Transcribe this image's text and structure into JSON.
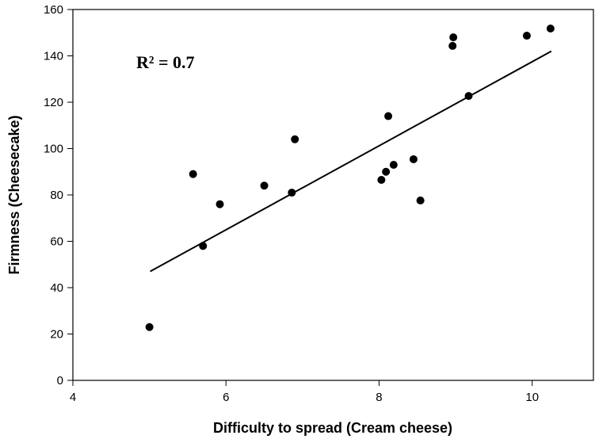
{
  "chart_data": {
    "type": "scatter",
    "x_label": "Difficulty to spread (Cream cheese)",
    "y_label": "Firmness (Cheesecake)",
    "annotation": "R² = 0.7",
    "xlim": [
      4,
      10.8
    ],
    "xticks": [
      4,
      6,
      8,
      10
    ],
    "ylim": [
      0,
      160
    ],
    "yticks": [
      0,
      20,
      40,
      60,
      80,
      100,
      120,
      140,
      160
    ],
    "color": "#000000",
    "x": [
      5.0,
      5.57,
      5.7,
      5.92,
      6.5,
      6.86,
      6.9,
      8.03,
      8.09,
      8.12,
      8.19,
      8.45,
      8.54,
      8.96,
      8.97,
      9.17,
      9.93,
      10.24
    ],
    "values": [
      23,
      89,
      58,
      76,
      84,
      81,
      104,
      86.5,
      90,
      114,
      93,
      95.4,
      77.6,
      144.3,
      148,
      122.7,
      148.7,
      151.8
    ],
    "fit_line": {
      "x": [
        5.01,
        10.25
      ],
      "y": [
        47,
        142
      ]
    }
  }
}
